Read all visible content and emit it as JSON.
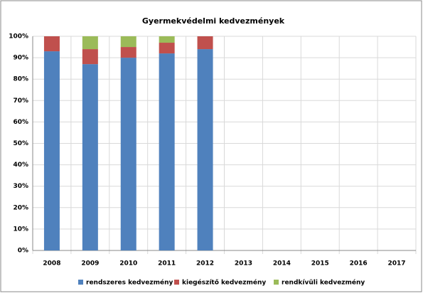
{
  "chart_data": {
    "type": "stacked_bar",
    "title": "Gyermekvédelmi kedvezmények",
    "categories": [
      "2008",
      "2009",
      "2010",
      "2011",
      "2012",
      "2013",
      "2014",
      "2015",
      "2016",
      "2017"
    ],
    "series": [
      {
        "name": "rendszeres kedvezmény",
        "color": "#4f81bd",
        "values": [
          93,
          87,
          90,
          92,
          94,
          null,
          null,
          null,
          null,
          null
        ]
      },
      {
        "name": "kiegészítő kedvezmény",
        "color": "#c0504d",
        "values": [
          7,
          7,
          5,
          5,
          6,
          null,
          null,
          null,
          null,
          null
        ]
      },
      {
        "name": "rendkívüli kedvezmény",
        "color": "#9bbb59",
        "values": [
          0,
          6,
          5,
          3,
          0,
          null,
          null,
          null,
          null,
          null
        ]
      }
    ],
    "ylim": [
      0,
      100
    ],
    "yticks": [
      {
        "value": 0,
        "label": "0%"
      },
      {
        "value": 10,
        "label": "10%"
      },
      {
        "value": 20,
        "label": "20%"
      },
      {
        "value": 30,
        "label": "30%"
      },
      {
        "value": 40,
        "label": "40%"
      },
      {
        "value": 50,
        "label": "50%"
      },
      {
        "value": 60,
        "label": "60%"
      },
      {
        "value": 70,
        "label": "70%"
      },
      {
        "value": 80,
        "label": "80%"
      },
      {
        "value": 90,
        "label": "90%"
      },
      {
        "value": 100,
        "label": "100%"
      }
    ],
    "grid": true,
    "legend": "bottom"
  }
}
